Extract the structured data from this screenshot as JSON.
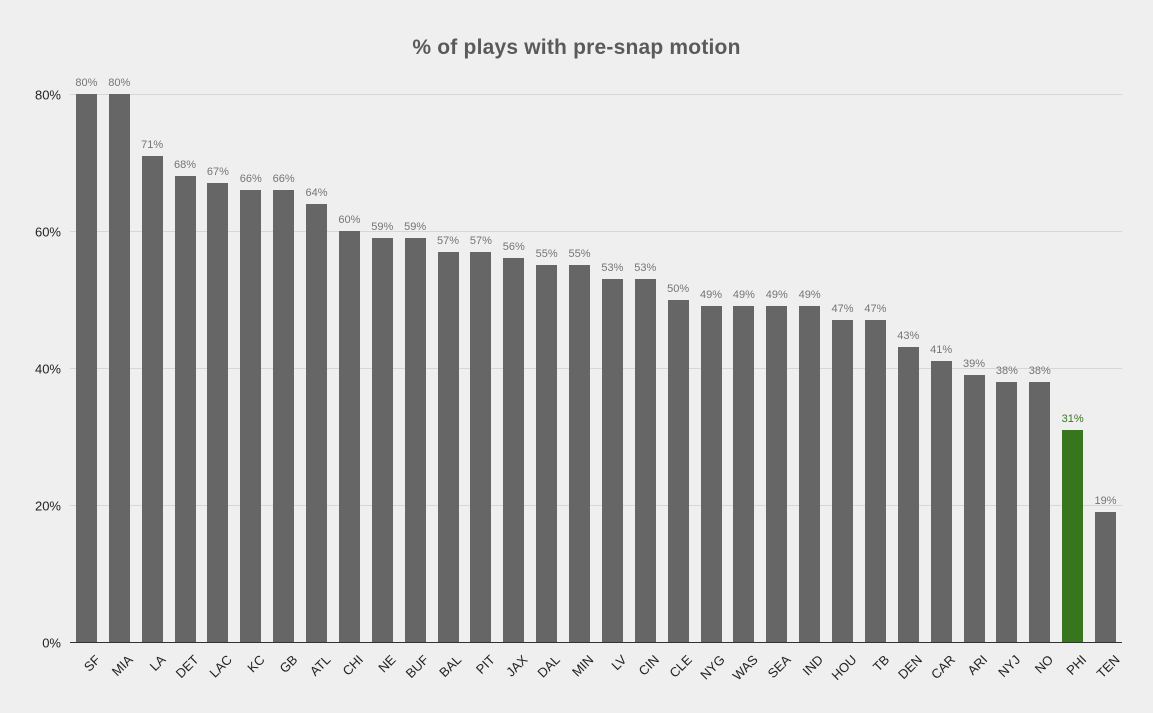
{
  "chart_data": {
    "type": "bar",
    "title": "% of plays with pre-snap motion",
    "categories": [
      "SF",
      "MIA",
      "LA",
      "DET",
      "LAC",
      "KC",
      "GB",
      "ATL",
      "CHI",
      "NE",
      "BUF",
      "BAL",
      "PIT",
      "JAX",
      "DAL",
      "MIN",
      "LV",
      "CIN",
      "CLE",
      "NYG",
      "WAS",
      "SEA",
      "IND",
      "HOU",
      "TB",
      "DEN",
      "CAR",
      "ARI",
      "NYJ",
      "NO",
      "PHI",
      "TEN"
    ],
    "values": [
      80,
      80,
      71,
      68,
      67,
      66,
      66,
      64,
      60,
      59,
      59,
      57,
      57,
      56,
      55,
      55,
      53,
      53,
      50,
      49,
      49,
      49,
      49,
      47,
      47,
      43,
      41,
      39,
      38,
      38,
      31,
      19
    ],
    "value_suffix": "%",
    "highlight_category": "PHI",
    "xlabel": "",
    "ylabel": "",
    "ylim": [
      0,
      80
    ],
    "yticks": [
      "0%",
      "20%",
      "40%",
      "60%",
      "80%"
    ],
    "grid": true,
    "legend": "none",
    "colors": {
      "background": "#efefef",
      "bar": "#666666",
      "highlight_bar": "#38761d",
      "value_label": "#757575",
      "highlight_value_label": "#38761d",
      "gridline": "#d6d6d6",
      "axis_line": "#333333",
      "title": "#5a5a5a",
      "tick_label": "#222222"
    }
  }
}
